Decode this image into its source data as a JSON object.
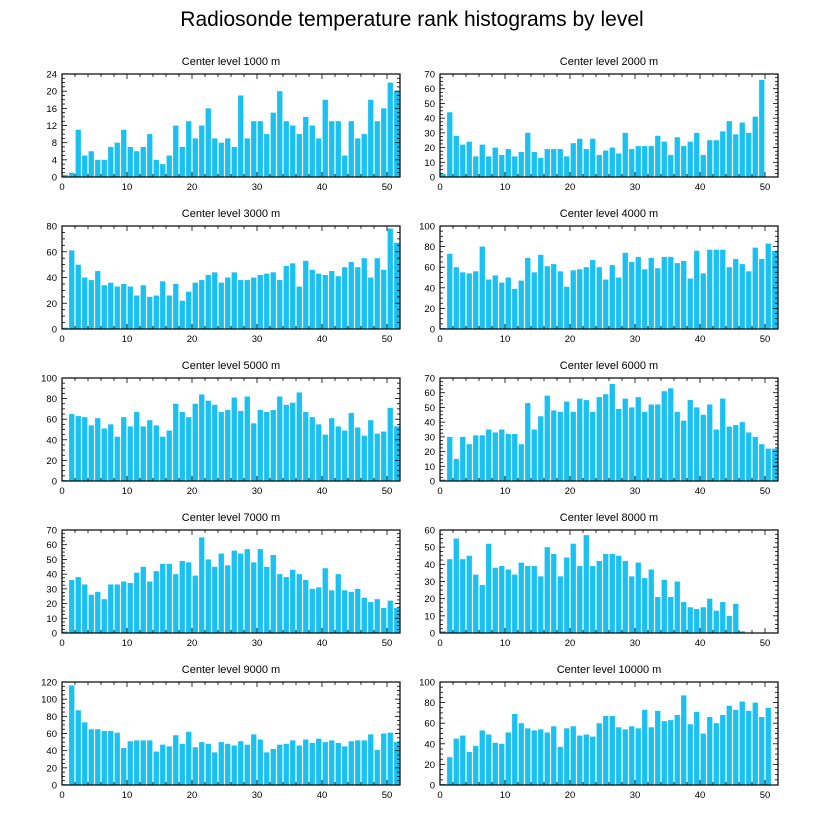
{
  "figure": {
    "title": "Radiosonde temperature rank histograms by level",
    "bar_color": "#19c0f2"
  },
  "chart_data": [
    {
      "type": "bar",
      "title": "Center level 1000 m",
      "x": [
        0,
        1,
        2,
        3,
        4,
        5,
        6,
        7,
        8,
        9,
        10,
        11,
        12,
        13,
        14,
        15,
        16,
        17,
        18,
        19,
        20,
        21,
        22,
        23,
        24,
        25,
        26,
        27,
        28,
        29,
        30,
        31,
        32,
        33,
        34,
        35,
        36,
        37,
        38,
        39,
        40,
        41,
        42,
        43,
        44,
        45,
        46,
        47,
        48,
        49,
        50,
        51
      ],
      "values": [
        0.5,
        1,
        11,
        5,
        6,
        4,
        4,
        7,
        8,
        11,
        7,
        6,
        7,
        10,
        4,
        3,
        5,
        12,
        7,
        13,
        9,
        12,
        16,
        9,
        8,
        9,
        7,
        19,
        9,
        13,
        13,
        10,
        15,
        20,
        13,
        12,
        10,
        14,
        12,
        9,
        18,
        13,
        13,
        5,
        13,
        9,
        10,
        18,
        13,
        16,
        22,
        20
      ],
      "xlim": [
        0,
        52
      ],
      "ylim": [
        0,
        24
      ],
      "yticks": [
        0,
        4,
        8,
        12,
        16,
        20,
        24
      ],
      "xticks": [
        0,
        10,
        20,
        30,
        40,
        50
      ]
    },
    {
      "type": "bar",
      "title": "Center level 2000 m",
      "x": [
        0,
        1,
        2,
        3,
        4,
        5,
        6,
        7,
        8,
        9,
        10,
        11,
        12,
        13,
        14,
        15,
        16,
        17,
        18,
        19,
        20,
        21,
        22,
        23,
        24,
        25,
        26,
        27,
        28,
        29,
        30,
        31,
        32,
        33,
        34,
        35,
        36,
        37,
        38,
        39,
        40,
        41,
        42,
        43,
        44,
        45,
        46,
        47,
        48,
        49,
        50,
        51
      ],
      "values": [
        2,
        44,
        28,
        22,
        24,
        14,
        22,
        14,
        20,
        15,
        19,
        14,
        17,
        30,
        17,
        13,
        19,
        19,
        19,
        14,
        23,
        26,
        19,
        26,
        15,
        18,
        20,
        16,
        30,
        19,
        21,
        21,
        21,
        28,
        24,
        15,
        27,
        21,
        24,
        30,
        15,
        25,
        25,
        31,
        38,
        29,
        37,
        30,
        41,
        66,
        0,
        0
      ],
      "xlim": [
        0,
        52
      ],
      "ylim": [
        0,
        70
      ],
      "yticks": [
        0,
        10,
        20,
        30,
        40,
        50,
        60,
        70
      ],
      "xticks": [
        0,
        10,
        20,
        30,
        40,
        50
      ]
    },
    {
      "type": "bar",
      "title": "Center level 3000 m",
      "x": [
        0,
        1,
        2,
        3,
        4,
        5,
        6,
        7,
        8,
        9,
        10,
        11,
        12,
        13,
        14,
        15,
        16,
        17,
        18,
        19,
        20,
        21,
        22,
        23,
        24,
        25,
        26,
        27,
        28,
        29,
        30,
        31,
        32,
        33,
        34,
        35,
        36,
        37,
        38,
        39,
        40,
        41,
        42,
        43,
        44,
        45,
        46,
        47,
        48,
        49,
        50,
        51
      ],
      "values": [
        1,
        61,
        50,
        40,
        38,
        45,
        34,
        36,
        33,
        35,
        33,
        26,
        34,
        25,
        26,
        37,
        26,
        35,
        22,
        29,
        36,
        38,
        42,
        44,
        36,
        40,
        44,
        38,
        38,
        40,
        42,
        43,
        44,
        38,
        49,
        51,
        33,
        53,
        46,
        43,
        42,
        45,
        41,
        48,
        52,
        48,
        55,
        40,
        55,
        46,
        78,
        67
      ],
      "xlim": [
        0,
        52
      ],
      "ylim": [
        0,
        80
      ],
      "yticks": [
        0,
        20,
        40,
        60,
        80
      ],
      "xticks": [
        0,
        10,
        20,
        30,
        40,
        50
      ]
    },
    {
      "type": "bar",
      "title": "Center level 4000 m",
      "x": [
        0,
        1,
        2,
        3,
        4,
        5,
        6,
        7,
        8,
        9,
        10,
        11,
        12,
        13,
        14,
        15,
        16,
        17,
        18,
        19,
        20,
        21,
        22,
        23,
        24,
        25,
        26,
        27,
        28,
        29,
        30,
        31,
        32,
        33,
        34,
        35,
        36,
        37,
        38,
        39,
        40,
        41,
        42,
        43,
        44,
        45,
        46,
        47,
        48,
        49,
        50,
        51
      ],
      "values": [
        1,
        73,
        60,
        55,
        54,
        56,
        80,
        48,
        52,
        45,
        50,
        39,
        47,
        69,
        55,
        72,
        61,
        63,
        56,
        41,
        57,
        58,
        60,
        67,
        60,
        48,
        62,
        50,
        74,
        65,
        70,
        58,
        69,
        59,
        70,
        70,
        64,
        66,
        49,
        76,
        54,
        77,
        77,
        77,
        60,
        68,
        63,
        56,
        79,
        68,
        83,
        76
      ],
      "xlim": [
        0,
        52
      ],
      "ylim": [
        0,
        100
      ],
      "yticks": [
        0,
        20,
        40,
        60,
        80,
        100
      ],
      "xticks": [
        0,
        10,
        20,
        30,
        40,
        50
      ]
    },
    {
      "type": "bar",
      "title": "Center level 5000 m",
      "x": [
        0,
        1,
        2,
        3,
        4,
        5,
        6,
        7,
        8,
        9,
        10,
        11,
        12,
        13,
        14,
        15,
        16,
        17,
        18,
        19,
        20,
        21,
        22,
        23,
        24,
        25,
        26,
        27,
        28,
        29,
        30,
        31,
        32,
        33,
        34,
        35,
        36,
        37,
        38,
        39,
        40,
        41,
        42,
        43,
        44,
        45,
        46,
        47,
        48,
        49,
        50,
        51
      ],
      "values": [
        1,
        65,
        63,
        62,
        54,
        61,
        51,
        55,
        43,
        62,
        53,
        67,
        53,
        59,
        54,
        43,
        49,
        75,
        67,
        62,
        75,
        84,
        78,
        74,
        67,
        69,
        81,
        68,
        82,
        56,
        69,
        67,
        69,
        82,
        74,
        76,
        86,
        67,
        62,
        55,
        45,
        61,
        53,
        49,
        66,
        52,
        44,
        59,
        46,
        48,
        71,
        53
      ],
      "xlim": [
        0,
        52
      ],
      "ylim": [
        0,
        100
      ],
      "yticks": [
        0,
        20,
        40,
        60,
        80,
        100
      ],
      "xticks": [
        0,
        10,
        20,
        30,
        40,
        50
      ]
    },
    {
      "type": "bar",
      "title": "Center level 6000 m",
      "x": [
        0,
        1,
        2,
        3,
        4,
        5,
        6,
        7,
        8,
        9,
        10,
        11,
        12,
        13,
        14,
        15,
        16,
        17,
        18,
        19,
        20,
        21,
        22,
        23,
        24,
        25,
        26,
        27,
        28,
        29,
        30,
        31,
        32,
        33,
        34,
        35,
        36,
        37,
        38,
        39,
        40,
        41,
        42,
        43,
        44,
        45,
        46,
        47,
        48,
        49,
        50,
        51
      ],
      "values": [
        1,
        30,
        15,
        30,
        25,
        31,
        31,
        35,
        33,
        35,
        32,
        32,
        25,
        53,
        35,
        44,
        58,
        48,
        47,
        54,
        47,
        56,
        55,
        47,
        57,
        59,
        66,
        49,
        56,
        50,
        57,
        47,
        52,
        52,
        61,
        63,
        47,
        41,
        55,
        50,
        45,
        52,
        35,
        56,
        37,
        38,
        40,
        33,
        30,
        25,
        22,
        22
      ],
      "xlim": [
        0,
        52
      ],
      "ylim": [
        0,
        70
      ],
      "yticks": [
        0,
        10,
        20,
        30,
        40,
        50,
        60,
        70
      ],
      "xticks": [
        0,
        10,
        20,
        30,
        40,
        50
      ]
    },
    {
      "type": "bar",
      "title": "Center level 7000 m",
      "x": [
        0,
        1,
        2,
        3,
        4,
        5,
        6,
        7,
        8,
        9,
        10,
        11,
        12,
        13,
        14,
        15,
        16,
        17,
        18,
        19,
        20,
        21,
        22,
        23,
        24,
        25,
        26,
        27,
        28,
        29,
        30,
        31,
        32,
        33,
        34,
        35,
        36,
        37,
        38,
        39,
        40,
        41,
        42,
        43,
        44,
        45,
        46,
        47,
        48,
        49,
        50,
        51
      ],
      "values": [
        1,
        36,
        38,
        33,
        26,
        28,
        23,
        33,
        33,
        35,
        34,
        41,
        45,
        35,
        42,
        47,
        47,
        40,
        49,
        48,
        39,
        65,
        50,
        45,
        54,
        46,
        56,
        54,
        57,
        48,
        57,
        45,
        53,
        40,
        38,
        43,
        40,
        36,
        30,
        31,
        44,
        29,
        40,
        29,
        28,
        30,
        24,
        21,
        23,
        17,
        22,
        17
      ],
      "xlim": [
        0,
        52
      ],
      "ylim": [
        0,
        70
      ],
      "yticks": [
        0,
        10,
        20,
        30,
        40,
        50,
        60,
        70
      ],
      "xticks": [
        0,
        10,
        20,
        30,
        40,
        50
      ]
    },
    {
      "type": "bar",
      "title": "Center level 8000 m",
      "x": [
        0,
        1,
        2,
        3,
        4,
        5,
        6,
        7,
        8,
        9,
        10,
        11,
        12,
        13,
        14,
        15,
        16,
        17,
        18,
        19,
        20,
        21,
        22,
        23,
        24,
        25,
        26,
        27,
        28,
        29,
        30,
        31,
        32,
        33,
        34,
        35,
        36,
        37,
        38,
        39,
        40,
        41,
        42,
        43,
        44,
        45,
        46,
        47,
        48,
        49,
        50,
        51
      ],
      "values": [
        1,
        43,
        55,
        43,
        45,
        34,
        28,
        52,
        38,
        39,
        37,
        34,
        41,
        39,
        39,
        33,
        50,
        46,
        33,
        44,
        52,
        39,
        57,
        39,
        42,
        46,
        46,
        45,
        42,
        33,
        41,
        32,
        37,
        21,
        31,
        21,
        30,
        18,
        15,
        14,
        15,
        20,
        13,
        18,
        10,
        17,
        1,
        0,
        0,
        0,
        0,
        0
      ],
      "xlim": [
        0,
        52
      ],
      "ylim": [
        0,
        60
      ],
      "yticks": [
        0,
        10,
        20,
        30,
        40,
        50,
        60
      ],
      "xticks": [
        0,
        10,
        20,
        30,
        40,
        50
      ]
    },
    {
      "type": "bar",
      "title": "Center level 9000 m",
      "x": [
        0,
        1,
        2,
        3,
        4,
        5,
        6,
        7,
        8,
        9,
        10,
        11,
        12,
        13,
        14,
        15,
        16,
        17,
        18,
        19,
        20,
        21,
        22,
        23,
        24,
        25,
        26,
        27,
        28,
        29,
        30,
        31,
        32,
        33,
        34,
        35,
        36,
        37,
        38,
        39,
        40,
        41,
        42,
        43,
        44,
        45,
        46,
        47,
        48,
        49,
        50,
        51
      ],
      "values": [
        1,
        116,
        87,
        73,
        65,
        65,
        63,
        63,
        61,
        43,
        51,
        52,
        52,
        52,
        39,
        47,
        45,
        58,
        48,
        62,
        44,
        50,
        48,
        38,
        50,
        48,
        46,
        51,
        47,
        59,
        53,
        38,
        42,
        47,
        48,
        52,
        46,
        53,
        49,
        54,
        50,
        52,
        49,
        45,
        51,
        52,
        52,
        59,
        41,
        60,
        61,
        50
      ],
      "xlim": [
        0,
        52
      ],
      "ylim": [
        0,
        120
      ],
      "yticks": [
        0,
        20,
        40,
        60,
        80,
        100,
        120
      ],
      "xticks": [
        0,
        10,
        20,
        30,
        40,
        50
      ]
    },
    {
      "type": "bar",
      "title": "Center level 10000 m",
      "x": [
        0,
        1,
        2,
        3,
        4,
        5,
        6,
        7,
        8,
        9,
        10,
        11,
        12,
        13,
        14,
        15,
        16,
        17,
        18,
        19,
        20,
        21,
        22,
        23,
        24,
        25,
        26,
        27,
        28,
        29,
        30,
        31,
        32,
        33,
        34,
        35,
        36,
        37,
        38,
        39,
        40,
        41,
        42,
        43,
        44,
        45,
        46,
        47,
        48,
        49,
        50,
        51
      ],
      "values": [
        1,
        27,
        45,
        48,
        32,
        38,
        53,
        49,
        41,
        40,
        51,
        69,
        60,
        55,
        53,
        54,
        51,
        57,
        37,
        55,
        57,
        48,
        49,
        47,
        60,
        67,
        67,
        56,
        54,
        57,
        55,
        73,
        56,
        72,
        62,
        63,
        68,
        87,
        59,
        71,
        50,
        66,
        60,
        68,
        77,
        73,
        81,
        72,
        80,
        66,
        75,
        0
      ],
      "xlim": [
        0,
        52
      ],
      "ylim": [
        0,
        100
      ],
      "yticks": [
        0,
        20,
        40,
        60,
        80,
        100
      ],
      "xticks": [
        0,
        10,
        20,
        30,
        40,
        50
      ]
    }
  ]
}
